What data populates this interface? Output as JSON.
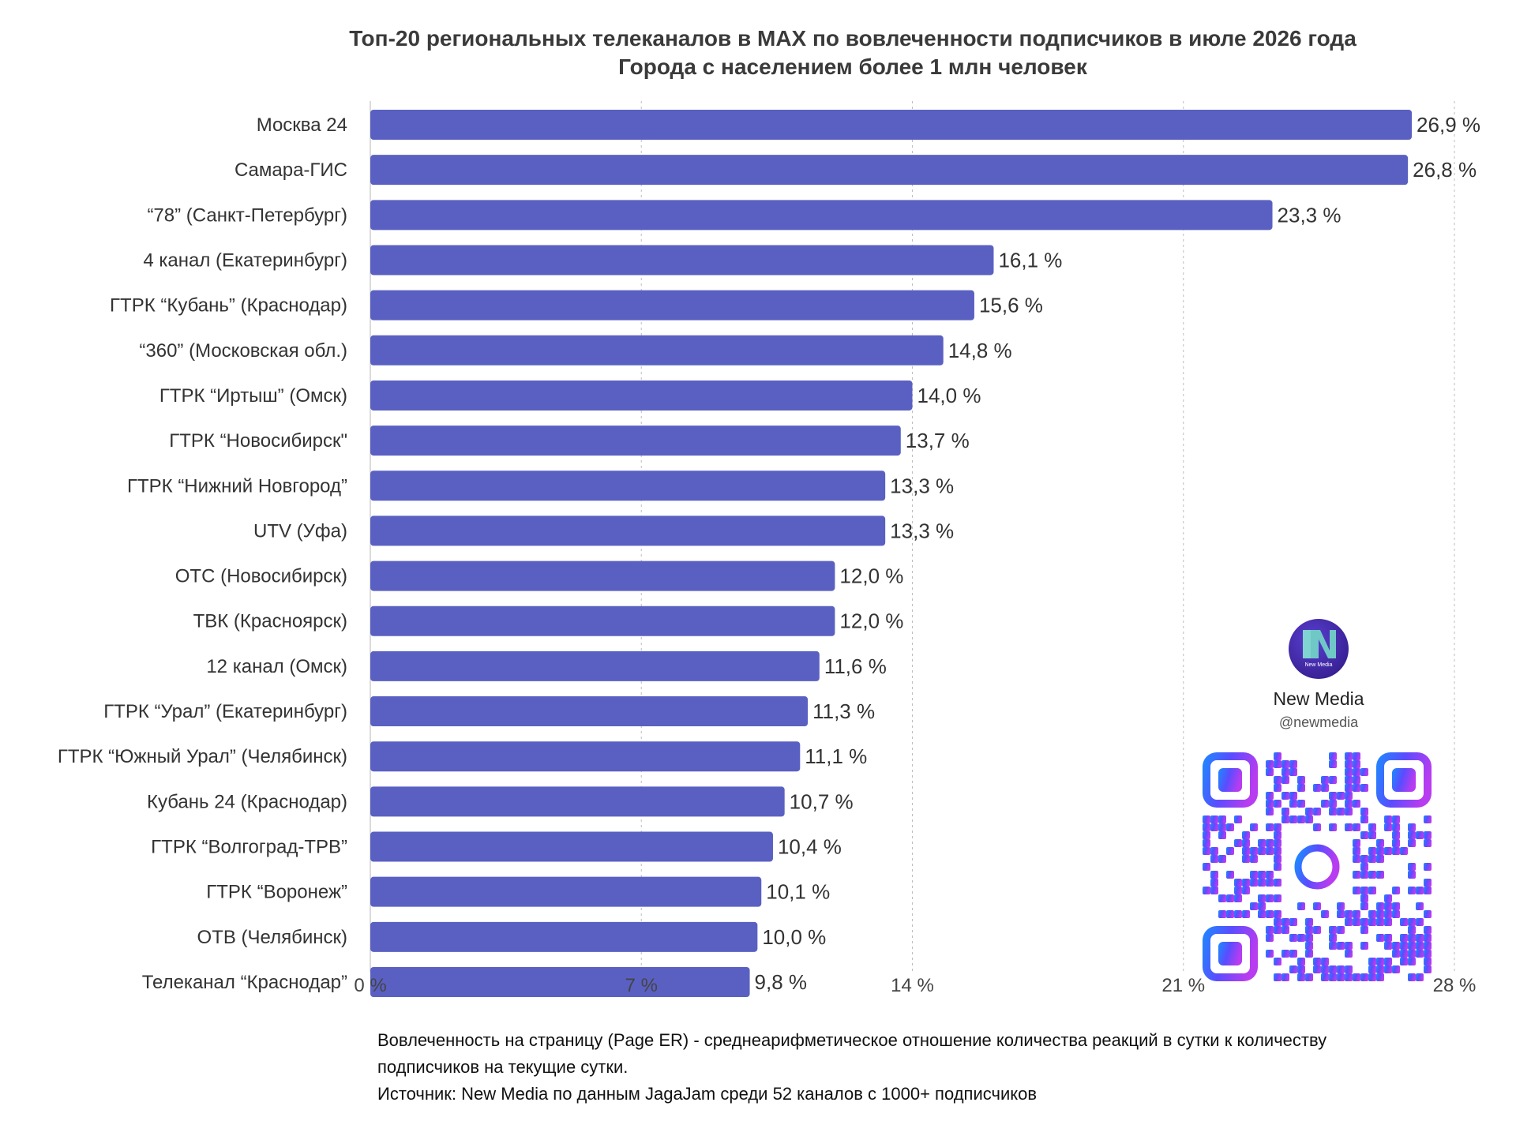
{
  "header": {
    "title": "Топ-20 региональных телеканалов в MAX по вовлеченности подписчиков в июле 2026 года",
    "subtitle": "Города с населением более 1 млн человек"
  },
  "chart_data": {
    "type": "bar",
    "orientation": "horizontal",
    "title": "Топ-20 региональных телеканалов в MAX по вовлеченности подписчиков в июле 2026 года",
    "subtitle": "Города с населением более 1 млн человек",
    "categories": [
      "Москва 24",
      "Самара-ГИС",
      "“78” (Санкт-Петербург)",
      "4 канал (Екатеринбург)",
      "ГТРК “Кубань” (Краснодар)",
      "“360” (Московская обл.)",
      "ГТРК “Иртыш” (Омск)",
      "ГТРК “Новосибирск\"",
      "ГТРК “Нижний Новгород”",
      "UTV (Уфа)",
      "ОТС (Новосибирск)",
      "ТВК (Красноярск)",
      "12 канал (Омск)",
      "ГТРК “Урал” (Екатеринбург)",
      "ГТРК “Южный Урал” (Челябинск)",
      "Кубань 24 (Краснодар)",
      "ГТРК “Волгоград-ТРВ”",
      "ГТРК “Воронеж”",
      "ОТВ (Челябинск)",
      "Телеканал “Краснодар”"
    ],
    "values": [
      26.9,
      26.8,
      23.3,
      16.1,
      15.6,
      14.8,
      14.0,
      13.7,
      13.3,
      13.3,
      12.0,
      12.0,
      11.6,
      11.3,
      11.1,
      10.7,
      10.4,
      10.1,
      10.0,
      9.8
    ],
    "value_labels": [
      "26,9 %",
      "26,8 %",
      "23,3 %",
      "16,1 %",
      "15,6 %",
      "14,8 %",
      "14,0 %",
      "13,7 %",
      "13,3 %",
      "13,3 %",
      "12,0 %",
      "12,0 %",
      "11,6 %",
      "11,3 %",
      "11,1 %",
      "10,7 %",
      "10,4 %",
      "10,1 %",
      "10,0 %",
      "9,8 %"
    ],
    "xlim": [
      0,
      28
    ],
    "xticks": [
      0,
      7,
      14,
      21,
      28
    ],
    "xtick_labels": [
      "0 %",
      "7 %",
      "14 %",
      "21 %",
      "28 %"
    ],
    "grid": "vertical dashed",
    "bar_color": "#5a60c2"
  },
  "footnote": {
    "definition": "Вовлеченность на страницу (Page ER) - среднеарифметическое отношение количества реакций в сутки к количеству подписчиков на текущие сутки.",
    "source": "Источник: New Media по данным JagaJam среди 52 каналов с 1000+ подписчиков"
  },
  "brand": {
    "logo_text": "New Media",
    "name": "New Media",
    "handle": "@newmedia",
    "logo_icon": "new-media-logo",
    "qr_icon": "qr-code"
  }
}
